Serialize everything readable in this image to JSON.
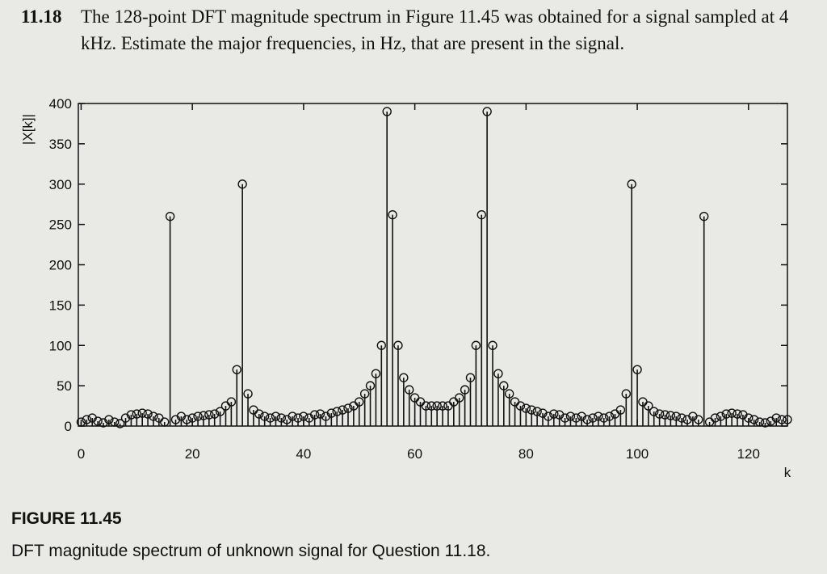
{
  "question": {
    "number": "11.18",
    "text": "The 128-point DFT magnitude spectrum in Figure 11.45 was obtained for a signal sampled at 4 kHz. Estimate the major frequencies, in Hz, that are present in the signal."
  },
  "figure": {
    "label": "FIGURE 11.45",
    "caption": "DFT magnitude spectrum of unknown signal for Question 11.18."
  },
  "chart_data": {
    "type": "stem",
    "xlabel": "k",
    "ylabel": "|X[k]|",
    "color": "#111111",
    "x": [
      0,
      1,
      2,
      3,
      4,
      5,
      6,
      7,
      8,
      9,
      10,
      11,
      12,
      13,
      14,
      15,
      16,
      17,
      18,
      19,
      20,
      21,
      22,
      23,
      24,
      25,
      26,
      27,
      28,
      29,
      30,
      31,
      32,
      33,
      34,
      35,
      36,
      37,
      38,
      39,
      40,
      41,
      42,
      43,
      44,
      45,
      46,
      47,
      48,
      49,
      50,
      51,
      52,
      53,
      54,
      55,
      56,
      57,
      58,
      59,
      60,
      61,
      62,
      63,
      64,
      65,
      66,
      67,
      68,
      69,
      70,
      71,
      72,
      73,
      74,
      75,
      76,
      77,
      78,
      79,
      80,
      81,
      82,
      83,
      84,
      85,
      86,
      87,
      88,
      89,
      90,
      91,
      92,
      93,
      94,
      95,
      96,
      97,
      98,
      99,
      100,
      101,
      102,
      103,
      104,
      105,
      106,
      107,
      108,
      109,
      110,
      111,
      112,
      113,
      114,
      115,
      116,
      117,
      118,
      119,
      120,
      121,
      122,
      123,
      124,
      125,
      126,
      127
    ],
    "values": [
      5,
      8,
      10,
      6,
      4,
      8,
      5,
      3,
      10,
      14,
      15,
      16,
      15,
      12,
      10,
      5,
      260,
      8,
      12,
      8,
      10,
      12,
      13,
      14,
      15,
      18,
      25,
      30,
      70,
      300,
      40,
      20,
      15,
      12,
      10,
      12,
      10,
      8,
      12,
      10,
      12,
      10,
      14,
      15,
      12,
      16,
      18,
      20,
      22,
      25,
      30,
      40,
      50,
      65,
      100,
      390,
      262,
      100,
      60,
      45,
      35,
      30,
      25,
      25,
      25,
      25,
      25,
      30,
      35,
      45,
      60,
      100,
      262,
      390,
      100,
      65,
      50,
      40,
      30,
      25,
      22,
      20,
      18,
      16,
      12,
      15,
      14,
      10,
      12,
      10,
      12,
      8,
      10,
      12,
      10,
      12,
      15,
      20,
      40,
      300,
      70,
      30,
      25,
      18,
      15,
      14,
      13,
      12,
      10,
      8,
      12,
      8,
      260,
      5,
      10,
      12,
      15,
      16,
      15,
      14,
      10,
      8,
      5,
      4,
      6,
      10,
      8,
      8
    ],
    "xlim": [
      -0.5,
      127
    ],
    "ylim": [
      0,
      400
    ],
    "xticks": [
      0,
      20,
      40,
      60,
      80,
      100,
      120
    ],
    "yticks": [
      0,
      50,
      100,
      150,
      200,
      250,
      300,
      350,
      400
    ]
  }
}
